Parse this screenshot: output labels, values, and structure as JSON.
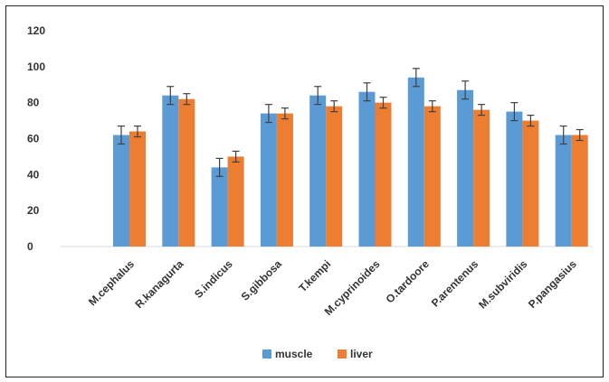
{
  "chart_data": {
    "type": "bar",
    "title": "",
    "xlabel": "",
    "ylabel": "",
    "ylim": [
      0,
      120
    ],
    "yticks": [
      0,
      20,
      40,
      60,
      80,
      100,
      120
    ],
    "grid": false,
    "legend_position": "bottom",
    "categories": [
      "M.cephalus",
      "R.kanagurta",
      "S.indicus",
      "S.gibbosa",
      "T.kempi",
      "M.cyprinoides",
      "O.tardoore",
      "P.arentenus",
      "M.subviridis",
      "P.pangasius"
    ],
    "series": [
      {
        "name": "muscle",
        "color": "#5b9bd5",
        "values": [
          62,
          84,
          44,
          74,
          84,
          86,
          94,
          87,
          75,
          62
        ],
        "errors": [
          5,
          5,
          5,
          5,
          5,
          5,
          5,
          5,
          5,
          5
        ]
      },
      {
        "name": "liver",
        "color": "#ed7d31",
        "values": [
          64,
          82,
          50,
          74,
          78,
          80,
          78,
          76,
          70,
          62
        ],
        "errors": [
          3,
          3,
          3,
          3,
          3,
          3,
          3,
          3,
          3,
          3
        ]
      }
    ]
  }
}
